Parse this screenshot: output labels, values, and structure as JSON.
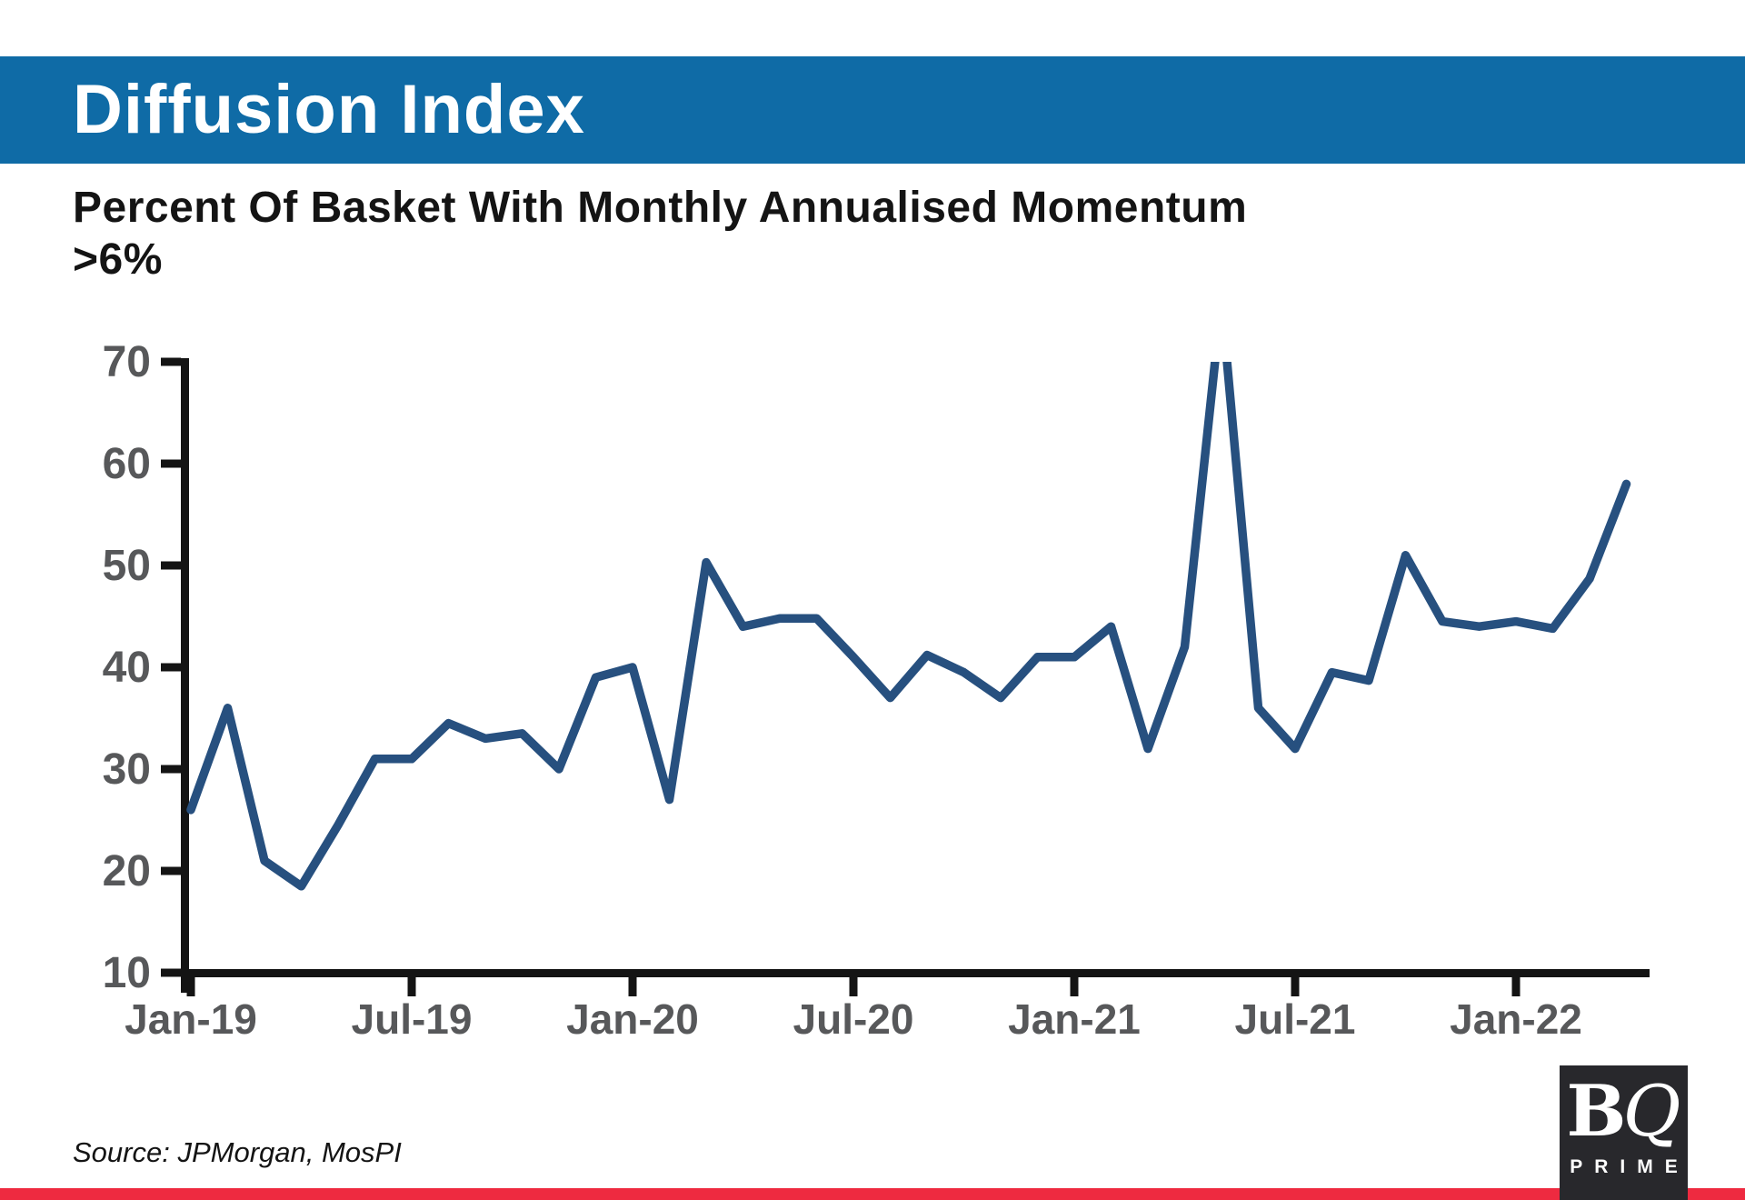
{
  "header": {
    "title": "Diffusion Index",
    "background_color": "#0f6ba6",
    "text_color": "#ffffff"
  },
  "subtitle": "Percent Of Basket With Monthly Annualised Momentum >6%",
  "source_text": "Source: JPMorgan, MosPI",
  "footer": {
    "bar_color": "#ee2a40"
  },
  "logo": {
    "b": "B",
    "q": "Q",
    "prime": "PRIME",
    "box_color": "#28282c"
  },
  "chart_data": {
    "type": "line",
    "title": "Diffusion Index",
    "subtitle": "Percent Of Basket With Monthly Annualised Momentum >6%",
    "x": [
      "Jan-19",
      "Feb-19",
      "Mar-19",
      "Apr-19",
      "May-19",
      "Jun-19",
      "Jul-19",
      "Aug-19",
      "Sep-19",
      "Oct-19",
      "Nov-19",
      "Dec-19",
      "Jan-20",
      "Feb-20",
      "Mar-20",
      "Apr-20",
      "May-20",
      "Jun-20",
      "Jul-20",
      "Aug-20",
      "Sep-20",
      "Oct-20",
      "Nov-20",
      "Dec-20",
      "Jan-21",
      "Feb-21",
      "Mar-21",
      "Apr-21",
      "May-21",
      "Jun-21",
      "Jul-21",
      "Aug-21",
      "Sep-21",
      "Oct-21",
      "Nov-21",
      "Dec-21",
      "Jan-22",
      "Feb-22",
      "Mar-22",
      "Apr-22"
    ],
    "values": [
      26,
      36,
      21,
      18.5,
      24.5,
      31,
      31,
      34.5,
      33,
      33.5,
      30,
      39,
      40,
      27,
      50.3,
      44,
      44.8,
      44.8,
      41,
      37,
      41.2,
      39.5,
      37,
      41,
      41,
      44,
      32,
      42,
      76,
      36,
      32,
      39.5,
      38.7,
      51,
      44.5,
      44,
      44.5,
      43.8,
      48.7,
      58
    ],
    "series_name": "Percent of basket with monthly annualised momentum >6%",
    "ylim": [
      10,
      70
    ],
    "yticks": [
      10,
      20,
      30,
      40,
      50,
      60,
      70
    ],
    "xtick_labels": [
      "Jan-19",
      "Jul-19",
      "Jan-20",
      "Jul-20",
      "Jan-21",
      "Jul-21",
      "Jan-22"
    ],
    "xtick_month_indices": [
      0,
      6,
      12,
      18,
      24,
      30,
      36
    ],
    "grid": false,
    "legend": "none",
    "clip_top_at": 70,
    "line_color": "#27507f",
    "axis_color": "#141414",
    "tick_label_color": "#57585a"
  }
}
